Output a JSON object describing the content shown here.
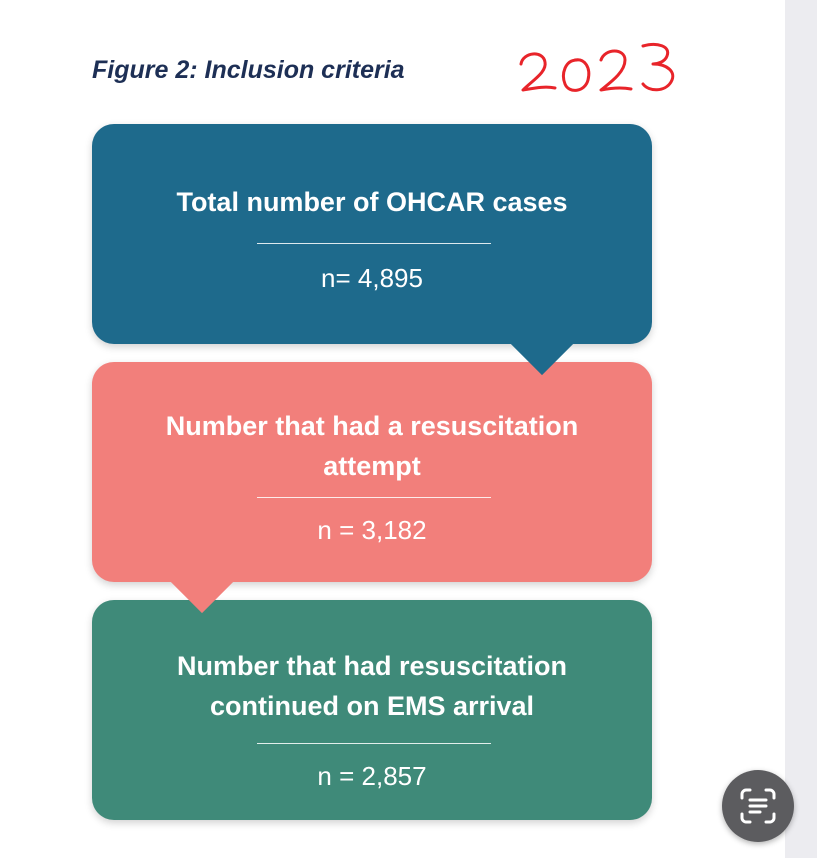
{
  "figure": {
    "title": "Figure 2: Inclusion criteria",
    "annotation": "2023"
  },
  "flow": [
    {
      "label": "Total number of OHCAR cases",
      "count": "n= 4,895",
      "color": "#1e6a8c"
    },
    {
      "label": "Number that had a resuscitation attempt",
      "count": "n = 3,182",
      "color": "#f27f7b"
    },
    {
      "label": "Number that had resuscitation continued on EMS arrival",
      "count": "n = 2,857",
      "color": "#3f8a79"
    }
  ],
  "annotation_color": "#e8242a",
  "overlay": {
    "icon": "text-scan-icon"
  }
}
